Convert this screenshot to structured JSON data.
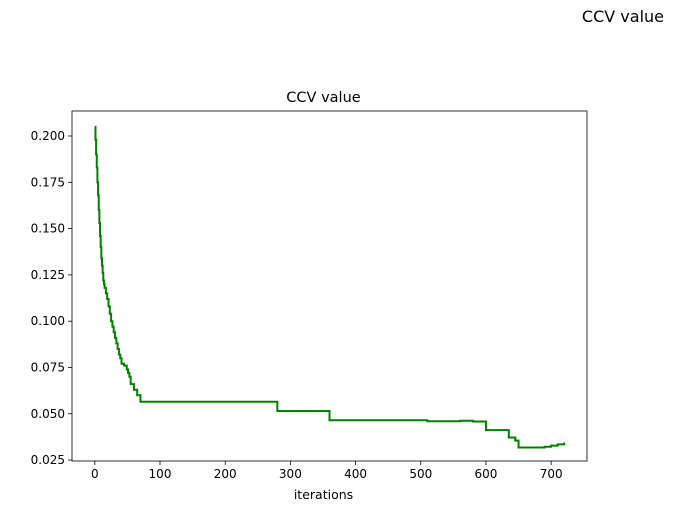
{
  "figure": {
    "suptitle": "CCV value"
  },
  "chart_data": {
    "type": "line",
    "title": "CCV value",
    "xlabel": "iterations",
    "ylabel": "",
    "xlim": [
      -35,
      755
    ],
    "ylim": [
      0.0245,
      0.2135
    ],
    "xticks": [
      0,
      100,
      200,
      300,
      400,
      500,
      600,
      700
    ],
    "yticks": [
      0.025,
      0.05,
      0.075,
      0.1,
      0.125,
      0.15,
      0.175,
      0.2
    ],
    "ytick_labels": [
      "0.025",
      "0.050",
      "0.075",
      "0.100",
      "0.125",
      "0.150",
      "0.175",
      "0.200"
    ],
    "grid": false,
    "series": [
      {
        "color": "#008000",
        "drawstyle": "steps-post",
        "x": [
          0,
          1,
          2,
          3,
          4,
          5,
          6,
          7,
          8,
          9,
          10,
          11,
          12,
          13,
          14,
          15,
          17,
          19,
          21,
          23,
          25,
          27,
          29,
          31,
          33,
          35,
          37,
          39,
          41,
          45,
          49,
          51,
          53,
          55,
          60,
          65,
          70,
          280,
          360,
          510,
          560,
          580,
          600,
          635,
          645,
          650,
          690,
          700,
          710,
          720
        ],
        "y": [
          0.205,
          0.198,
          0.19,
          0.183,
          0.175,
          0.168,
          0.16,
          0.153,
          0.146,
          0.14,
          0.134,
          0.13,
          0.126,
          0.122,
          0.12,
          0.118,
          0.115,
          0.112,
          0.108,
          0.104,
          0.1,
          0.097,
          0.094,
          0.091,
          0.088,
          0.085,
          0.082,
          0.08,
          0.077,
          0.076,
          0.074,
          0.072,
          0.07,
          0.066,
          0.063,
          0.06,
          0.0565,
          0.0515,
          0.0465,
          0.046,
          0.0462,
          0.0458,
          0.0412,
          0.0372,
          0.0355,
          0.0318,
          0.0322,
          0.0328,
          0.0335,
          0.0345
        ]
      }
    ]
  }
}
